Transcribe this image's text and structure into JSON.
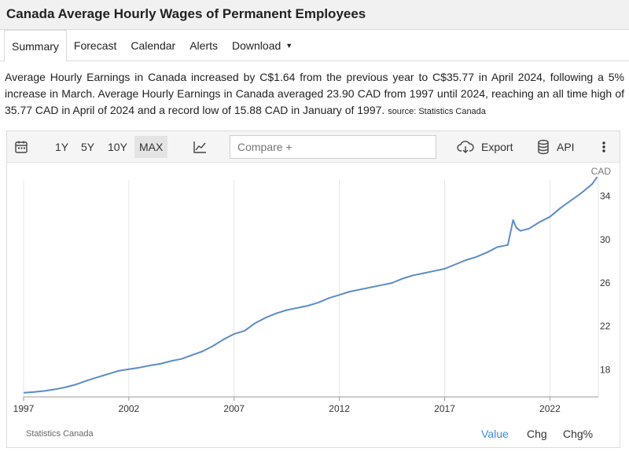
{
  "page": {
    "title": "Canada Average Hourly Wages of Permanent Employees"
  },
  "tabs": [
    {
      "label": "Summary",
      "active": true
    },
    {
      "label": "Forecast"
    },
    {
      "label": "Calendar"
    },
    {
      "label": "Alerts"
    },
    {
      "label": "Download"
    }
  ],
  "description": {
    "text": "Average Hourly Earnings in Canada increased by C$1.64 from the previous year to C$35.77 in April 2024, following a 5% increase in March. Average Hourly Earnings in Canada averaged 23.90 CAD from 1997 until 2024, reaching an all time high of 35.77 CAD in April of 2024 and a record low of 15.88 CAD in January of 1997.",
    "source": "source: Statistics Canada"
  },
  "toolbar": {
    "calendar_icon": "calendar-icon",
    "ranges": [
      "1Y",
      "5Y",
      "10Y",
      "MAX"
    ],
    "active_range": "MAX",
    "chart_type_icon": "line-chart-icon",
    "compare_placeholder": "Compare +",
    "export_label": "Export",
    "api_label": "API",
    "more_icon": "vertical-dots-icon"
  },
  "footer": {
    "source": "Statistics Canada",
    "modes": [
      "Value",
      "Chg",
      "Chg%"
    ],
    "active_mode": "Value",
    "active_color": "#3c8de0"
  },
  "chart_data": {
    "type": "line",
    "unit": "CAD",
    "x_ticks": [
      "1997",
      "2002",
      "2007",
      "2012",
      "2017",
      "2022"
    ],
    "y_ticks": [
      18,
      22,
      26,
      30,
      34
    ],
    "ylim": [
      15.5,
      36.5
    ],
    "xlim": [
      1997.0,
      2024.3
    ],
    "grid": "vertical",
    "line_color": "#5b8cc6",
    "series": [
      {
        "name": "",
        "x": [
          1997.0,
          1997.5,
          1998.0,
          1998.5,
          1999.0,
          1999.5,
          2000.0,
          2000.5,
          2001.0,
          2001.5,
          2002.0,
          2002.5,
          2003.0,
          2003.5,
          2004.0,
          2004.5,
          2005.0,
          2005.5,
          2006.0,
          2006.5,
          2007.0,
          2007.5,
          2008.0,
          2008.5,
          2009.0,
          2009.5,
          2010.0,
          2010.5,
          2011.0,
          2011.5,
          2012.0,
          2012.5,
          2013.0,
          2013.5,
          2014.0,
          2014.5,
          2015.0,
          2015.5,
          2016.0,
          2016.5,
          2017.0,
          2017.5,
          2018.0,
          2018.5,
          2019.0,
          2019.5,
          2020.0,
          2020.25,
          2020.4,
          2020.6,
          2021.0,
          2021.5,
          2022.0,
          2022.5,
          2023.0,
          2023.5,
          2024.0,
          2024.25
        ],
        "values": [
          15.88,
          15.95,
          16.05,
          16.2,
          16.4,
          16.65,
          17.0,
          17.3,
          17.6,
          17.9,
          18.05,
          18.2,
          18.4,
          18.55,
          18.8,
          19.0,
          19.35,
          19.7,
          20.2,
          20.8,
          21.3,
          21.6,
          22.3,
          22.8,
          23.2,
          23.5,
          23.7,
          23.9,
          24.2,
          24.6,
          24.9,
          25.2,
          25.4,
          25.6,
          25.8,
          26.0,
          26.4,
          26.7,
          26.9,
          27.1,
          27.3,
          27.7,
          28.1,
          28.4,
          28.8,
          29.3,
          29.5,
          31.8,
          31.1,
          30.8,
          31.0,
          31.6,
          32.1,
          32.9,
          33.6,
          34.3,
          35.1,
          35.77
        ]
      }
    ]
  }
}
